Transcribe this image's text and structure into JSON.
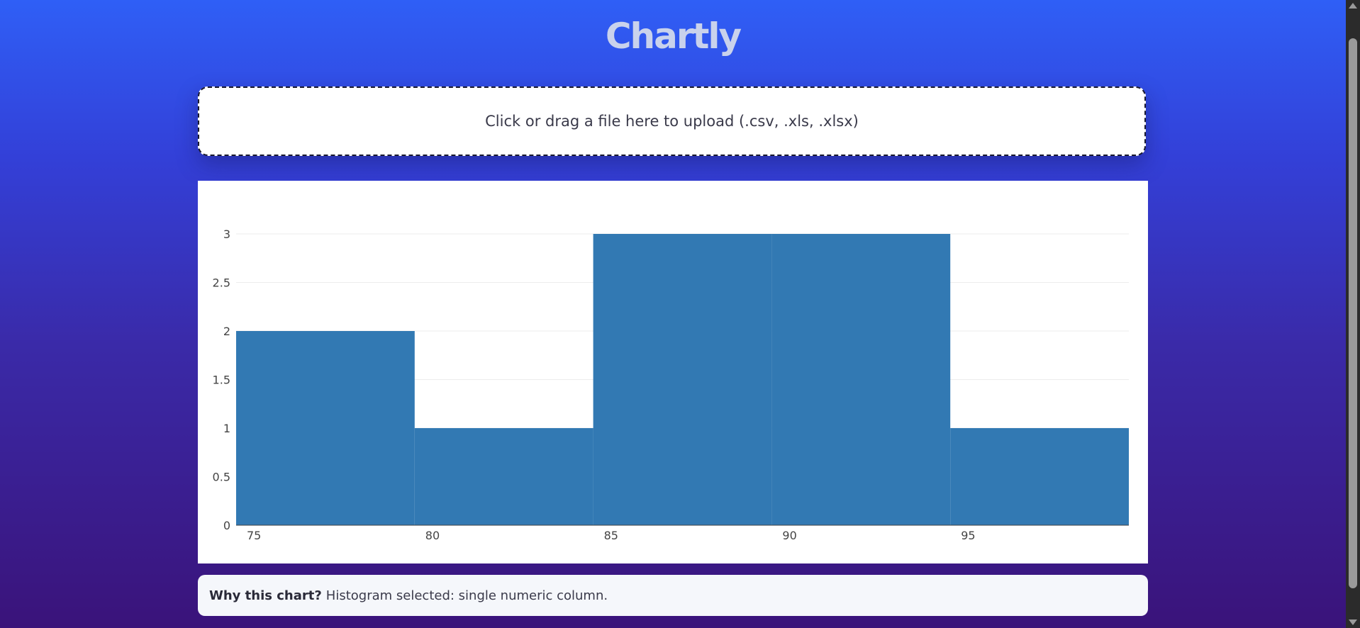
{
  "app": {
    "title": "Chartly"
  },
  "upload": {
    "text": "Click or drag a file here to upload (.csv, .xls, .xlsx)"
  },
  "explanation": {
    "label": "Why this chart?",
    "text": "Histogram selected: single numeric column."
  },
  "chart_data": {
    "type": "bar",
    "bins": [
      {
        "start": 74.5,
        "end": 79.5,
        "count": 2
      },
      {
        "start": 79.5,
        "end": 84.5,
        "count": 1
      },
      {
        "start": 84.5,
        "end": 89.5,
        "count": 3
      },
      {
        "start": 89.5,
        "end": 94.5,
        "count": 3
      },
      {
        "start": 94.5,
        "end": 99.5,
        "count": 1
      }
    ],
    "xlim": [
      74.5,
      99.5
    ],
    "ylim": [
      0,
      3
    ],
    "xticks": [
      75,
      80,
      85,
      90,
      95
    ],
    "yticks": [
      0,
      0.5,
      1,
      1.5,
      2,
      2.5,
      3
    ],
    "ytick_labels": [
      "0",
      "0.5",
      "1",
      "1.5",
      "2",
      "2.5",
      "3"
    ],
    "bar_color": "#3279b3",
    "grid": true,
    "title": "",
    "xlabel": "",
    "ylabel": ""
  }
}
